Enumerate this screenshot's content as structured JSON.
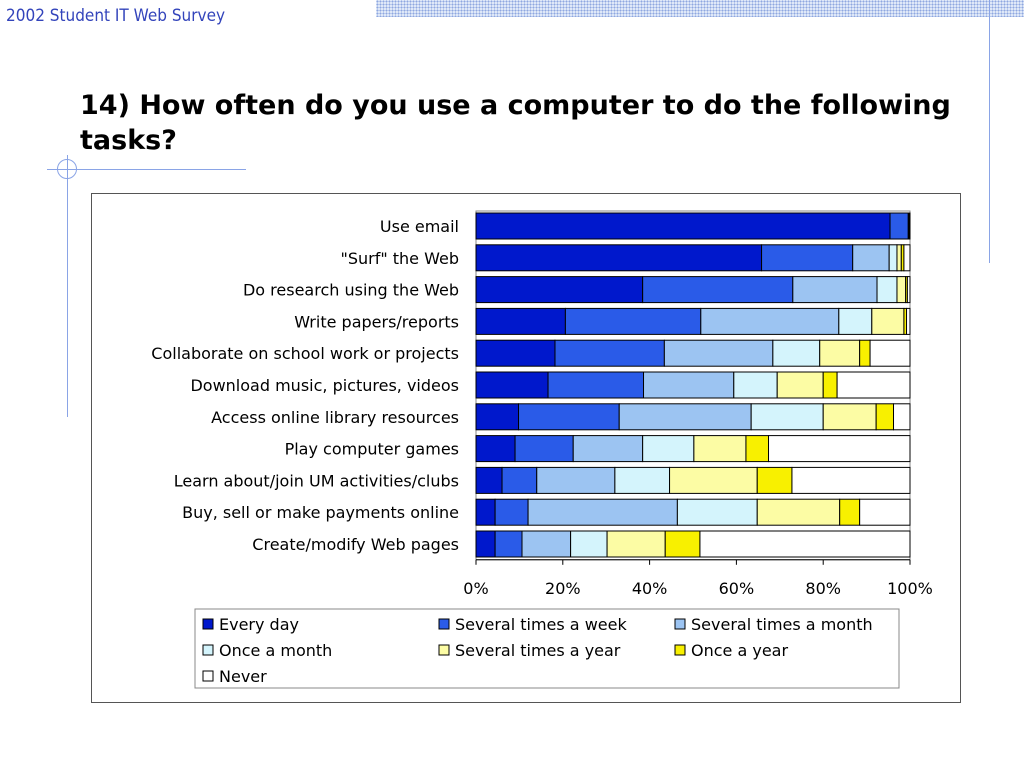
{
  "header": {
    "text": "2002 Student IT Web Survey"
  },
  "slide": {
    "title": "14) How often do you use a computer to do the following tasks?"
  },
  "chart_data": {
    "type": "bar",
    "orientation": "horizontal",
    "stacked": "percent",
    "title": "",
    "xlabel": "",
    "ylabel": "",
    "xlim": [
      0,
      100
    ],
    "x_ticks": [
      "0%",
      "20%",
      "40%",
      "60%",
      "80%",
      "100%"
    ],
    "grid": false,
    "legend_position": "bottom",
    "categories": [
      "Use email",
      "\"Surf\" the Web",
      "Do research using the Web",
      "Write papers/reports",
      "Collaborate on school work or projects",
      "Download music, pictures, videos",
      "Access online library resources",
      "Play computer games",
      "Learn about/join UM activities/clubs",
      "Buy, sell or make payments online",
      "Create/modify Web pages"
    ],
    "series": [
      {
        "name": "Every day",
        "color": "#0018cc",
        "values": [
          95.4,
          65.8,
          38.4,
          20.6,
          18.2,
          16.6,
          9.8,
          9.0,
          6.0,
          4.4,
          4.4
        ]
      },
      {
        "name": "Several times a week",
        "color": "#2a5be8",
        "values": [
          4.2,
          21.0,
          34.6,
          31.2,
          25.2,
          22.0,
          23.2,
          13.4,
          8.0,
          7.6,
          6.2
        ]
      },
      {
        "name": "Several times a month",
        "color": "#9cc4f2",
        "values": [
          0.2,
          8.4,
          19.4,
          31.8,
          25.0,
          20.8,
          30.4,
          16.0,
          18.0,
          34.4,
          11.2
        ]
      },
      {
        "name": "Once a month",
        "color": "#d4f4fc",
        "values": [
          0,
          1.8,
          4.6,
          7.6,
          10.8,
          10.0,
          16.6,
          11.8,
          12.6,
          18.4,
          8.4
        ]
      },
      {
        "name": "Several times a year",
        "color": "#fcfca4",
        "values": [
          0,
          1.0,
          2.0,
          7.4,
          9.2,
          10.6,
          12.2,
          12.0,
          20.2,
          19.0,
          13.4
        ]
      },
      {
        "name": "Once a year",
        "color": "#f8f000",
        "values": [
          0,
          0.6,
          0.4,
          0.6,
          2.4,
          3.2,
          4.0,
          5.2,
          8.0,
          4.6,
          8.0
        ]
      },
      {
        "name": "Never",
        "color": "#ffffff",
        "values": [
          0.2,
          1.4,
          0.6,
          0.8,
          9.2,
          16.8,
          3.8,
          32.6,
          27.2,
          11.6,
          48.4
        ]
      }
    ]
  }
}
